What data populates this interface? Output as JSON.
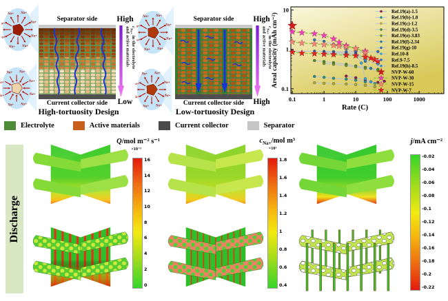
{
  "figure": {
    "ion_label": "Na+",
    "panel_high": {
      "separator_side": "Separator side",
      "collector_side": "Current collector side",
      "caption": "High-tortuosity Design",
      "grad_top": "High",
      "grad_bottom": "Low",
      "arrow_line1_pre": "c",
      "arrow_line1_sub": "Na+",
      "arrow_line1_post": " in the electrolyte",
      "arrow_line2": "and active materials"
    },
    "panel_low": {
      "separator_side": "Separator side",
      "collector_side": "Current collector side",
      "caption": "Low-tortuosity Design",
      "grad_top": "High",
      "grad_bottom": "High",
      "arrow_line1_pre": "c",
      "arrow_line1_sub": "Na+",
      "arrow_line1_post": " in the electrolyte",
      "arrow_line2": "and active materials"
    },
    "materials_legend": [
      {
        "label": "Electrolyte",
        "color": "#4e8b38"
      },
      {
        "label": "Active materials",
        "color": "#c85f1d"
      },
      {
        "label": "Current collector",
        "color": "#4a4a4a"
      },
      {
        "label": "Separator",
        "color": "#c6c6c6"
      }
    ],
    "discharge_label": "Discharge"
  },
  "chart_data": {
    "type": "scatter",
    "title": "",
    "xlabel": "Rate (C)",
    "ylabel": "Areal capacity (mAh cm⁻²)",
    "xscale": "log",
    "yscale": "log",
    "xlim": [
      0.09,
      6000
    ],
    "ylim": [
      0.075,
      12
    ],
    "xticks": [
      0.1,
      1,
      10,
      100,
      1000
    ],
    "yticks": [
      0.1,
      1,
      10
    ],
    "grid": false,
    "legend_position": "top-right",
    "background": [
      "#fbf7dc",
      "#d8c958"
    ],
    "series": [
      {
        "label": "Ref.19(a)-1.5",
        "type": "dot",
        "color": "#8a2050",
        "points": [
          [
            5,
            0.21
          ],
          [
            10,
            0.19
          ],
          [
            20,
            0.165
          ],
          [
            30,
            0.15
          ],
          [
            50,
            0.145
          ],
          [
            80,
            0.155
          ]
        ]
      },
      {
        "label": "Ref.19(b)-1.8",
        "type": "dot",
        "color": "#2e8f84",
        "points": [
          [
            0.5,
            0.205
          ],
          [
            1,
            0.195
          ],
          [
            2,
            0.185
          ],
          [
            5,
            0.175
          ],
          [
            10,
            0.165
          ],
          [
            20,
            0.15
          ],
          [
            40,
            0.135
          ]
        ]
      },
      {
        "label": "Ref.19(c)-1.2",
        "type": "dot",
        "color": "#b2a833",
        "points": [
          [
            0.5,
            0.142
          ],
          [
            1,
            0.138
          ],
          [
            2,
            0.135
          ],
          [
            5,
            0.132
          ],
          [
            10,
            0.128
          ],
          [
            20,
            0.122
          ],
          [
            40,
            0.112
          ]
        ]
      },
      {
        "label": "Ref.19(d)-3.5",
        "type": "dot",
        "color": "#4c8a28",
        "points": [
          [
            0.5,
            0.52
          ],
          [
            1,
            0.49
          ],
          [
            2,
            0.46
          ],
          [
            5,
            0.42
          ],
          [
            10,
            0.38
          ],
          [
            20,
            0.35
          ],
          [
            50,
            0.31
          ]
        ]
      },
      {
        "label": "Ref.19(e)-3.83",
        "type": "dot",
        "color": "#6f9126",
        "points": [
          [
            1,
            0.44
          ],
          [
            2,
            0.42
          ],
          [
            5,
            0.39
          ],
          [
            10,
            0.36
          ],
          [
            20,
            0.33
          ],
          [
            50,
            0.29
          ]
        ]
      },
      {
        "label": "Ref.19(f)-2.34",
        "type": "dot",
        "color": "#2f7d9d",
        "points": [
          [
            0.5,
            1.75
          ],
          [
            1,
            1.6
          ],
          [
            2,
            1.35
          ],
          [
            5,
            1.05
          ],
          [
            10,
            0.8
          ],
          [
            20,
            0.5
          ],
          [
            30,
            0.33
          ]
        ]
      },
      {
        "label": "Ref.19(g)-10",
        "type": "dot",
        "color": "#3a6fae",
        "points": [
          [
            0.1,
            0.9
          ],
          [
            0.5,
            0.9
          ],
          [
            1,
            0.89
          ],
          [
            2,
            0.88
          ],
          [
            5,
            0.87
          ],
          [
            10,
            0.86
          ],
          [
            20,
            0.84
          ],
          [
            50,
            0.88
          ]
        ]
      },
      {
        "label": "Ref.10-8",
        "type": "dot",
        "color": "#3fa3cc",
        "points": [
          [
            1,
            0.82
          ],
          [
            2,
            0.79
          ],
          [
            5,
            0.76
          ],
          [
            10,
            0.72
          ],
          [
            15,
            0.45
          ],
          [
            20,
            0.18
          ],
          [
            30,
            0.15
          ]
        ]
      },
      {
        "label": "Ref.9-7.5",
        "type": "dot",
        "color": "#2d6cc3",
        "points": [
          [
            1,
            0.86
          ],
          [
            2,
            0.84
          ],
          [
            5,
            0.81
          ],
          [
            10,
            0.78
          ],
          [
            20,
            0.62
          ],
          [
            40,
            0.55
          ]
        ]
      },
      {
        "label": "Ref.19(h)-8.5",
        "type": "dot",
        "color": "#3a88cc",
        "points": [
          [
            1,
            0.76
          ],
          [
            2,
            0.74
          ],
          [
            5,
            0.71
          ],
          [
            10,
            0.69
          ],
          [
            20,
            0.52
          ],
          [
            50,
            0.43
          ]
        ]
      },
      {
        "label": "NVP-W-60",
        "type": "star",
        "size": 7,
        "color": "#cf1d1d",
        "points": [
          [
            0.1,
            4.0
          ]
        ]
      },
      {
        "label": "NVP-W-30",
        "type": "star",
        "size": 5,
        "color": "#ef3fc0",
        "points": [
          [
            0.1,
            2.8
          ],
          [
            0.2,
            2.65
          ],
          [
            0.5,
            2.5
          ],
          [
            1,
            2.25
          ],
          [
            2,
            1.85
          ],
          [
            3,
            1.5
          ],
          [
            5,
            1.25
          ],
          [
            10,
            1.05
          ],
          [
            20,
            0.9
          ]
        ]
      },
      {
        "label": "NVP-W-15",
        "type": "star",
        "size": 5,
        "color": "#f4867e",
        "points": [
          [
            0.1,
            1.55
          ],
          [
            0.2,
            1.45
          ],
          [
            0.5,
            1.38
          ],
          [
            1,
            1.32
          ],
          [
            2,
            1.27
          ],
          [
            3,
            1.22
          ],
          [
            5,
            1.15
          ],
          [
            10,
            1.05
          ],
          [
            20,
            0.82
          ]
        ]
      },
      {
        "label": "NVP-W-7",
        "type": "star",
        "size": 5,
        "color": "#e02222",
        "points": [
          [
            0.1,
            0.85
          ],
          [
            0.2,
            0.8
          ],
          [
            0.5,
            0.78
          ],
          [
            1,
            0.76
          ],
          [
            2,
            0.74
          ],
          [
            5,
            0.71
          ],
          [
            10,
            0.69
          ],
          [
            20,
            0.64
          ],
          [
            30,
            0.6
          ],
          [
            40,
            0.55
          ],
          [
            50,
            0.5
          ]
        ]
      }
    ]
  },
  "bottom_plots": [
    {
      "var": "Q",
      "var_sub": "",
      "unit": "/mol m⁻² s⁻¹",
      "scale": "×10⁻⁵",
      "ticks": [
        "16",
        "14",
        "12",
        "10",
        "8",
        "6",
        "4",
        "2",
        "0"
      ]
    },
    {
      "var": "c",
      "var_sub": "Na+",
      "unit": "/mol m³",
      "scale": "×10³",
      "ticks": [
        "1.8",
        "1.6",
        "1.4",
        "1.2",
        "1",
        "0.8",
        "0.6",
        "0.4"
      ]
    },
    {
      "var": "j",
      "var_sub": "",
      "unit": "/mA cm⁻²",
      "scale": "",
      "ticks": [
        "-0.02",
        "-0.04",
        "-0.06",
        "-0.08",
        "-0.1",
        "-0.12",
        "-0.14",
        "-0.16",
        "-0.18",
        "-0.2",
        "-0.22"
      ]
    }
  ]
}
